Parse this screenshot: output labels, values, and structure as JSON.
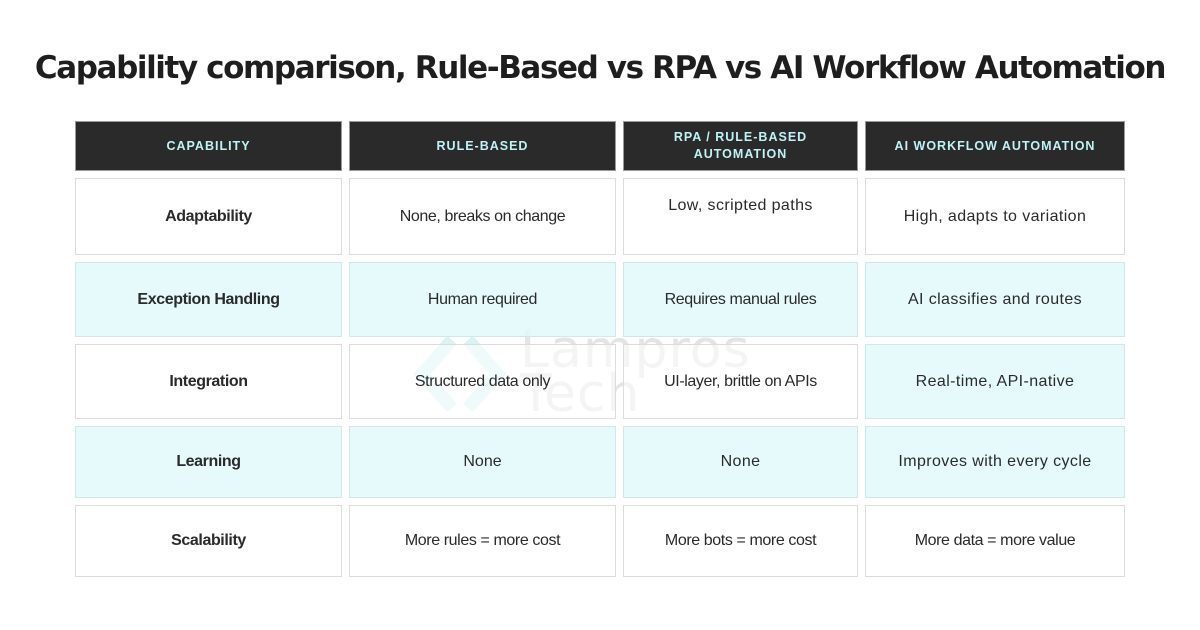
{
  "title": "Capability comparison, Rule-Based vs RPA vs AI Workflow Automation",
  "watermark": {
    "line1": "Lampros",
    "line2": "Tech"
  },
  "colors": {
    "header_bg": "#2a2a2a",
    "header_text": "#bff3f7",
    "highlight_row": "#e2f9fb",
    "border": "#dcdcdc"
  },
  "headers": [
    "CAPABILITY",
    "RULE-BASED",
    "RPA / RULE-BASED AUTOMATION",
    "AI WORKFLOW AUTOMATION"
  ],
  "rows": [
    {
      "capability": "Adaptability",
      "rule_based": "None, breaks on change",
      "rpa": "Low, scripted paths",
      "ai": "High, adapts to variation",
      "highlight": [
        "no",
        "no",
        "no",
        "no"
      ]
    },
    {
      "capability": "Exception Handling",
      "rule_based": "Human required",
      "rpa": "Requires manual rules",
      "ai": "AI classifies and routes"
    },
    {
      "capability": "Integration",
      "rule_based": "Structured data only",
      "rpa": "UI-layer, brittle on APIs",
      "ai": "Real-time, API-native"
    },
    {
      "capability": "Learning",
      "rule_based": "None",
      "rpa": "None",
      "ai": "Improves with every cycle"
    },
    {
      "capability": "Scalability",
      "rule_based": "More rules = more cost",
      "rpa": "More bots = more cost",
      "ai": "More data = more value"
    }
  ]
}
